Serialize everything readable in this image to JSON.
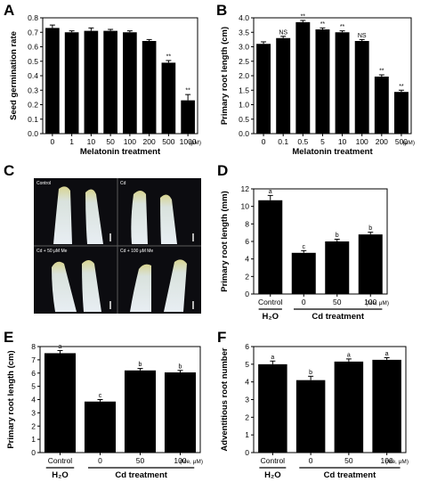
{
  "panel_labels": [
    "A",
    "B",
    "C",
    "D",
    "E",
    "F"
  ],
  "colors": {
    "bar": "#000000",
    "background": "#ffffff",
    "photo_bg": "#0c0c10",
    "root": "#dfe6ec",
    "tip": "#d7d58a"
  },
  "chart_data": [
    {
      "panel": "A",
      "type": "bar",
      "categories": [
        "0",
        "1",
        "10",
        "50",
        "100",
        "200",
        "500",
        "1000"
      ],
      "values": [
        0.73,
        0.7,
        0.71,
        0.71,
        0.7,
        0.64,
        0.49,
        0.23
      ],
      "errors": [
        0.02,
        0.01,
        0.02,
        0.01,
        0.01,
        0.01,
        0.015,
        0.04
      ],
      "annotations": [
        "",
        "",
        "",
        "",
        "",
        "",
        "**",
        "**"
      ],
      "unit": "(μM)",
      "xlabel": "Melatonin treatment",
      "ylabel": "Seed germination rate",
      "ylim": [
        0,
        0.8
      ],
      "yticks": [
        "0.0",
        "0.1",
        "0.2",
        "0.3",
        "0.4",
        "0.5",
        "0.6",
        "0.7",
        "0.8"
      ]
    },
    {
      "panel": "B",
      "type": "bar",
      "categories": [
        "0",
        "0.1",
        "0.5",
        "5",
        "10",
        "100",
        "200",
        "500"
      ],
      "values": [
        3.1,
        3.3,
        3.85,
        3.6,
        3.5,
        3.2,
        1.97,
        1.44
      ],
      "errors": [
        0.07,
        0.06,
        0.06,
        0.05,
        0.05,
        0.05,
        0.06,
        0.06
      ],
      "annotations": [
        "",
        "NS",
        "**",
        "**",
        "**",
        "NS",
        "**",
        "**"
      ],
      "unit": "(μM)",
      "xlabel": "Melatonin treatment",
      "ylabel": "Primary root length (cm)",
      "ylim": [
        0,
        4.0
      ],
      "yticks": [
        "0.0",
        "0.5",
        "1.0",
        "1.5",
        "2.0",
        "2.5",
        "3.0",
        "3.5",
        "4.0"
      ]
    },
    {
      "panel": "D",
      "type": "bar",
      "categories": [
        "Control",
        "0",
        "50",
        "100"
      ],
      "values": [
        10.7,
        4.7,
        6.0,
        6.8
      ],
      "errors": [
        0.55,
        0.25,
        0.25,
        0.25
      ],
      "annotations": [
        "a",
        "c",
        "b",
        "b"
      ],
      "unit": "(Me, μM)",
      "group_left": "H₂O",
      "group_right": "Cd treatment",
      "ylabel": "Primary root length (mm)",
      "ylim": [
        0,
        12
      ],
      "yticks": [
        "0",
        "2",
        "4",
        "6",
        "8",
        "10",
        "12"
      ]
    },
    {
      "panel": "E",
      "type": "bar",
      "categories": [
        "Control",
        "0",
        "50",
        "100"
      ],
      "values": [
        7.5,
        3.85,
        6.2,
        6.05
      ],
      "errors": [
        0.2,
        0.15,
        0.15,
        0.15
      ],
      "annotations": [
        "a",
        "c",
        "b",
        "b"
      ],
      "unit": "(Me, μM)",
      "group_left": "H₂O",
      "group_right": "Cd treatment",
      "ylabel": "Primary root length (cm)",
      "ylim": [
        0,
        8
      ],
      "yticks": [
        "0",
        "1",
        "2",
        "3",
        "4",
        "5",
        "6",
        "7",
        "8"
      ]
    },
    {
      "panel": "F",
      "type": "bar",
      "categories": [
        "Control",
        "0",
        "50",
        "100"
      ],
      "values": [
        5.0,
        4.1,
        5.15,
        5.25
      ],
      "errors": [
        0.18,
        0.22,
        0.15,
        0.12
      ],
      "annotations": [
        "a",
        "b",
        "a",
        "a"
      ],
      "unit": "(Me, μM)",
      "group_left": "H₂O",
      "group_right": "Cd treatment",
      "ylabel": "Adventitious root number",
      "ylim": [
        0,
        6
      ],
      "yticks": [
        "0",
        "1",
        "2",
        "3",
        "4",
        "5",
        "6"
      ]
    }
  ],
  "photo_panel": {
    "panel": "C",
    "quadrant_labels": [
      "Control",
      "Cd",
      "Cd + 50 μM Me",
      "Cd + 100 μM Me"
    ]
  }
}
